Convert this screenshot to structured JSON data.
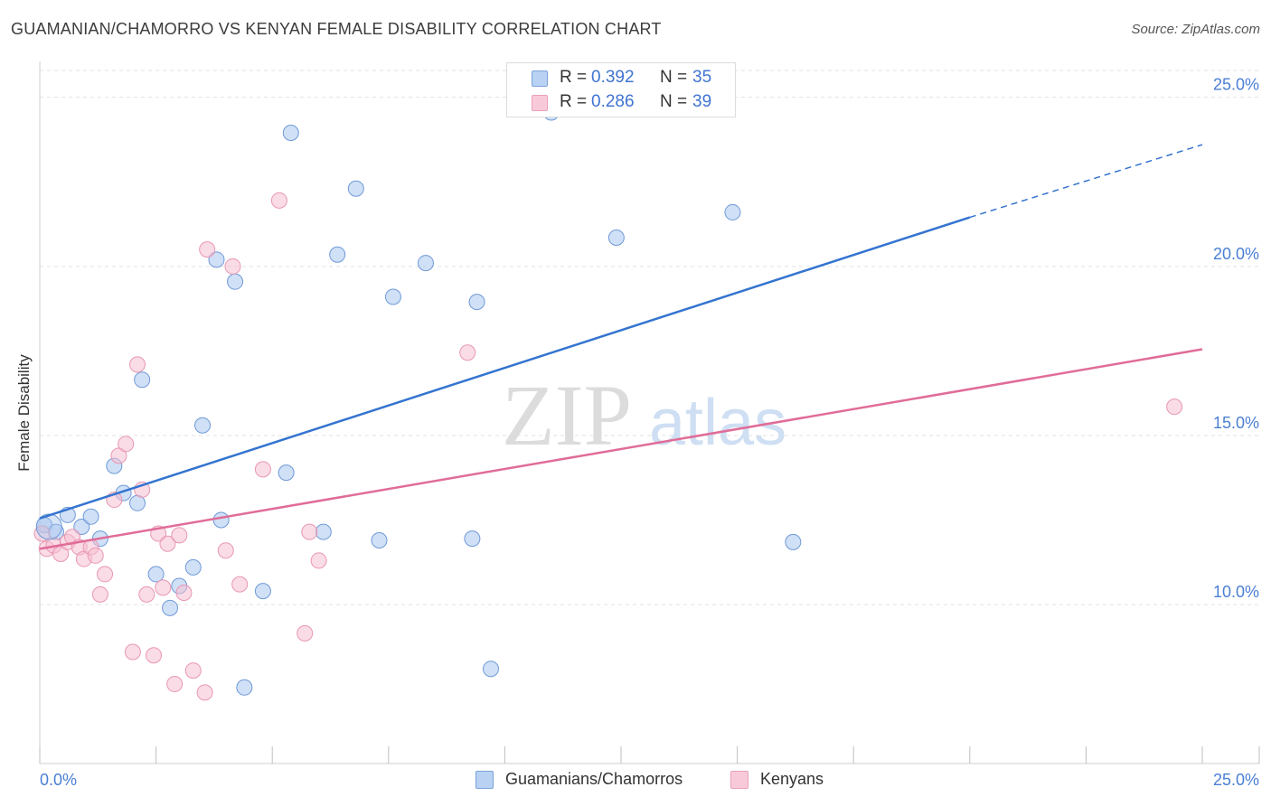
{
  "chart_data": {
    "type": "scatter",
    "title": "GUAMANIAN/CHAMORRO VS KENYAN FEMALE DISABILITY CORRELATION CHART",
    "source": "Source: ZipAtlas.com",
    "xlabel": "",
    "ylabel": "Female Disability",
    "xlim": [
      0,
      25
    ],
    "ylim": [
      5.3,
      25.9
    ],
    "x_tick_labels": {
      "left": "0.0%",
      "right": "25.0%"
    },
    "y_ticks": [
      {
        "value": 10,
        "label": "10.0%"
      },
      {
        "value": 15,
        "label": "15.0%"
      },
      {
        "value": 20,
        "label": "20.0%"
      },
      {
        "value": 25,
        "label": "25.0%"
      }
    ],
    "grid": true,
    "watermark": {
      "part1": "ZIP",
      "part2": "atlas"
    },
    "series": [
      {
        "name": "Guamanians/Chamorros",
        "color": "#a9c6ee",
        "stroke": "#6f9ad8",
        "line_color": "#3474d0",
        "R": "0.392",
        "N": "35",
        "trend": {
          "x0": 0,
          "y0": 12.55,
          "x1": 20,
          "y1": 21.45,
          "dash_x1": 25,
          "dash_y1": 23.6
        },
        "points": [
          [
            0.1,
            12.35
          ],
          [
            0.35,
            12.15
          ],
          [
            0.6,
            12.65
          ],
          [
            0.9,
            12.3
          ],
          [
            1.1,
            12.6
          ],
          [
            1.3,
            11.95
          ],
          [
            1.6,
            14.1
          ],
          [
            1.8,
            13.3
          ],
          [
            2.1,
            13.0
          ],
          [
            2.2,
            16.65
          ],
          [
            2.5,
            10.9
          ],
          [
            2.8,
            9.9
          ],
          [
            3.0,
            10.55
          ],
          [
            3.3,
            11.1
          ],
          [
            3.5,
            15.3
          ],
          [
            3.8,
            20.2
          ],
          [
            3.9,
            12.5
          ],
          [
            4.2,
            19.55
          ],
          [
            4.4,
            7.55
          ],
          [
            4.8,
            10.4
          ],
          [
            5.4,
            23.95
          ],
          [
            5.3,
            13.9
          ],
          [
            6.1,
            12.15
          ],
          [
            6.4,
            20.35
          ],
          [
            6.8,
            22.3
          ],
          [
            7.3,
            11.9
          ],
          [
            7.6,
            19.1
          ],
          [
            8.3,
            20.1
          ],
          [
            9.3,
            11.95
          ],
          [
            9.4,
            18.95
          ],
          [
            9.7,
            8.1
          ],
          [
            11.0,
            24.55
          ],
          [
            12.4,
            20.85
          ],
          [
            14.9,
            21.6
          ],
          [
            16.2,
            11.85
          ]
        ]
      },
      {
        "name": "Kenyans",
        "color": "#f6c0d1",
        "stroke": "#e897b2",
        "line_color": "#e06c98",
        "R": "0.286",
        "N": "39",
        "trend": {
          "x0": 0,
          "y0": 11.65,
          "x1": 25,
          "y1": 17.55
        },
        "points": [
          [
            0.15,
            11.65
          ],
          [
            0.3,
            11.75
          ],
          [
            0.45,
            11.5
          ],
          [
            0.6,
            11.85
          ],
          [
            0.7,
            12.0
          ],
          [
            0.85,
            11.7
          ],
          [
            0.95,
            11.35
          ],
          [
            1.1,
            11.7
          ],
          [
            1.2,
            11.45
          ],
          [
            1.3,
            10.3
          ],
          [
            1.4,
            10.9
          ],
          [
            1.6,
            13.1
          ],
          [
            1.7,
            14.4
          ],
          [
            1.85,
            14.75
          ],
          [
            2.0,
            8.6
          ],
          [
            2.1,
            17.1
          ],
          [
            2.2,
            13.4
          ],
          [
            2.3,
            10.3
          ],
          [
            2.45,
            8.5
          ],
          [
            2.55,
            12.1
          ],
          [
            2.65,
            10.5
          ],
          [
            2.75,
            11.8
          ],
          [
            2.9,
            7.65
          ],
          [
            3.0,
            12.05
          ],
          [
            3.1,
            10.35
          ],
          [
            3.3,
            8.05
          ],
          [
            3.55,
            7.4
          ],
          [
            3.6,
            20.5
          ],
          [
            4.0,
            11.6
          ],
          [
            4.15,
            20.0
          ],
          [
            4.3,
            10.6
          ],
          [
            4.8,
            14.0
          ],
          [
            5.15,
            21.95
          ],
          [
            5.7,
            9.15
          ],
          [
            5.8,
            12.15
          ],
          [
            6.0,
            11.3
          ],
          [
            9.2,
            17.45
          ],
          [
            24.4,
            15.85
          ],
          [
            0.05,
            12.1
          ]
        ]
      }
    ]
  }
}
